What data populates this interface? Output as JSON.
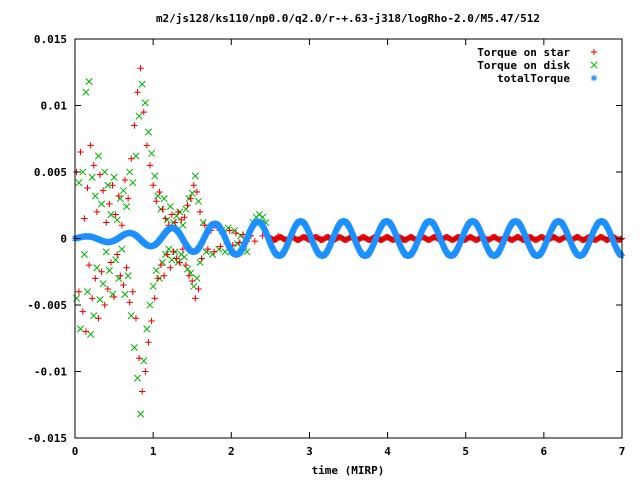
{
  "chart_data": {
    "type": "scatter",
    "title": "m2/js128/ks110/np0.0/q2.0/r-+.63-j318/logRho-2.0/M5.47/512",
    "xlabel": "time (MIRP)",
    "ylabel": "",
    "xlim": [
      0,
      7
    ],
    "ylim": [
      -0.015,
      0.015
    ],
    "x_ticks": [
      "0",
      "1",
      "2",
      "3",
      "4",
      "5",
      "6",
      "7"
    ],
    "y_ticks": [
      "-0.015",
      "-0.01",
      "-0.005",
      "0",
      "0.005",
      "0.01",
      "0.015"
    ],
    "grid": false,
    "legend_position": "top-right",
    "series": [
      {
        "name": "Torque on star",
        "marker": "plus",
        "color": "#e00000",
        "description_of_shape": "large scatter up to about 0.013 before t=1.7, decaying to near 0 after t=2.5",
        "points": [
          [
            0.02,
            0.005
          ],
          [
            0.05,
            -0.004
          ],
          [
            0.07,
            0.0065
          ],
          [
            0.1,
            -0.0055
          ],
          [
            0.12,
            0.0015
          ],
          [
            0.14,
            -0.007
          ],
          [
            0.16,
            0.0038
          ],
          [
            0.18,
            -0.002
          ],
          [
            0.2,
            0.007
          ],
          [
            0.22,
            -0.0045
          ],
          [
            0.24,
            0.0055
          ],
          [
            0.26,
            -0.003
          ],
          [
            0.28,
            0.002
          ],
          [
            0.3,
            -0.006
          ],
          [
            0.32,
            0.0048
          ],
          [
            0.34,
            -0.0025
          ],
          [
            0.36,
            0.0036
          ],
          [
            0.38,
            -0.005
          ],
          [
            0.4,
            0.0012
          ],
          [
            0.42,
            -0.0038
          ],
          [
            0.44,
            0.0026
          ],
          [
            0.46,
            -0.0018
          ],
          [
            0.48,
            0.004
          ],
          [
            0.5,
            -0.0044
          ],
          [
            0.52,
            0.0018
          ],
          [
            0.54,
            -0.0012
          ],
          [
            0.56,
            0.0032
          ],
          [
            0.58,
            -0.0028
          ],
          [
            0.6,
            0.001
          ],
          [
            0.62,
            -0.0035
          ],
          [
            0.64,
            0.0044
          ],
          [
            0.66,
            -0.0022
          ],
          [
            0.68,
            0.003
          ],
          [
            0.7,
            -0.0048
          ],
          [
            0.72,
            0.006
          ],
          [
            0.74,
            -0.004
          ],
          [
            0.76,
            0.0085
          ],
          [
            0.78,
            -0.006
          ],
          [
            0.8,
            0.011
          ],
          [
            0.82,
            -0.009
          ],
          [
            0.84,
            0.0128
          ],
          [
            0.86,
            -0.0115
          ],
          [
            0.88,
            0.0095
          ],
          [
            0.9,
            -0.01
          ],
          [
            0.92,
            0.007
          ],
          [
            0.94,
            -0.0078
          ],
          [
            0.96,
            0.0055
          ],
          [
            0.98,
            -0.0062
          ],
          [
            1.0,
            0.004
          ],
          [
            1.02,
            -0.0045
          ],
          [
            1.04,
            0.0028
          ],
          [
            1.06,
            -0.003
          ],
          [
            1.08,
            0.0035
          ],
          [
            1.1,
            -0.002
          ],
          [
            1.12,
            0.0022
          ],
          [
            1.14,
            -0.0028
          ],
          [
            1.16,
            0.0015
          ],
          [
            1.18,
            -0.0012
          ],
          [
            1.2,
            0.001
          ],
          [
            1.22,
            -0.0022
          ],
          [
            1.24,
            0.0018
          ],
          [
            1.26,
            -0.001
          ],
          [
            1.28,
            0.0012
          ],
          [
            1.3,
            -0.0015
          ],
          [
            1.32,
            0.002
          ],
          [
            1.34,
            -0.0018
          ],
          [
            1.36,
            0.0014
          ],
          [
            1.38,
            -0.0008
          ],
          [
            1.4,
            0.0016
          ],
          [
            1.42,
            -0.002
          ],
          [
            1.44,
            0.0025
          ],
          [
            1.46,
            -0.0028
          ],
          [
            1.48,
            0.003
          ],
          [
            1.5,
            -0.0032
          ],
          [
            1.52,
            0.004
          ],
          [
            1.54,
            -0.0045
          ],
          [
            1.56,
            0.0035
          ],
          [
            1.58,
            -0.0038
          ],
          [
            1.6,
            0.002
          ],
          [
            1.62,
            -0.0015
          ],
          [
            1.66,
            0.001
          ],
          [
            1.7,
            -0.0008
          ],
          [
            1.74,
            0.0006
          ],
          [
            1.78,
            -0.001
          ],
          [
            1.82,
            0.0008
          ],
          [
            1.86,
            -0.0006
          ],
          [
            1.9,
            0.0005
          ],
          [
            1.94,
            -0.0004
          ],
          [
            1.98,
            0.0006
          ],
          [
            2.02,
            -0.0005
          ],
          [
            2.06,
            0.0004
          ],
          [
            2.1,
            -0.0003
          ],
          [
            2.15,
            0.0003
          ],
          [
            2.2,
            -0.0002
          ],
          [
            2.25,
            0.0002
          ],
          [
            2.3,
            -0.0002
          ],
          [
            2.4,
            0.0002
          ],
          [
            2.5,
            -0.0002
          ],
          [
            2.6,
            0.0002
          ],
          [
            2.7,
            -0.0002
          ],
          [
            2.8,
            0.0001
          ]
        ],
        "steady_state": {
          "x_start": 2.5,
          "x_end": 7.0,
          "value_range": [
            -0.0001,
            0.0001
          ]
        }
      },
      {
        "name": "Torque on disk",
        "marker": "cross",
        "color": "#00b000",
        "description_of_shape": "large scatter up to about 0.0118 before t=1.7, merging into the total torque oscillation after t=2.3",
        "points": [
          [
            0.02,
            -0.0045
          ],
          [
            0.05,
            0.0042
          ],
          [
            0.07,
            -0.0068
          ],
          [
            0.1,
            0.005
          ],
          [
            0.12,
            -0.0012
          ],
          [
            0.14,
            0.011
          ],
          [
            0.16,
            -0.004
          ],
          [
            0.18,
            0.0118
          ],
          [
            0.2,
            -0.0072
          ],
          [
            0.22,
            0.0046
          ],
          [
            0.24,
            -0.0058
          ],
          [
            0.26,
            0.0032
          ],
          [
            0.28,
            -0.0022
          ],
          [
            0.3,
            0.0062
          ],
          [
            0.32,
            -0.0046
          ],
          [
            0.34,
            0.0026
          ],
          [
            0.36,
            -0.0034
          ],
          [
            0.38,
            0.005
          ],
          [
            0.4,
            -0.001
          ],
          [
            0.42,
            0.004
          ],
          [
            0.44,
            -0.0024
          ],
          [
            0.46,
            0.0018
          ],
          [
            0.48,
            -0.0042
          ],
          [
            0.5,
            0.0046
          ],
          [
            0.52,
            -0.0016
          ],
          [
            0.54,
            0.0014
          ],
          [
            0.56,
            -0.003
          ],
          [
            0.58,
            0.003
          ],
          [
            0.6,
            -0.0008
          ],
          [
            0.62,
            0.0036
          ],
          [
            0.64,
            -0.0042
          ],
          [
            0.66,
            0.0024
          ],
          [
            0.68,
            -0.0028
          ],
          [
            0.7,
            0.005
          ],
          [
            0.72,
            -0.0058
          ],
          [
            0.74,
            0.0042
          ],
          [
            0.76,
            -0.0082
          ],
          [
            0.78,
            0.0062
          ],
          [
            0.8,
            -0.0105
          ],
          [
            0.82,
            0.0092
          ],
          [
            0.84,
            -0.0132
          ],
          [
            0.86,
            0.0116
          ],
          [
            0.88,
            -0.0092
          ],
          [
            0.9,
            0.0102
          ],
          [
            0.92,
            -0.0068
          ],
          [
            0.94,
            0.008
          ],
          [
            0.96,
            -0.005
          ],
          [
            0.98,
            0.0064
          ],
          [
            1.0,
            -0.0036
          ],
          [
            1.02,
            0.0047
          ],
          [
            1.04,
            -0.0024
          ],
          [
            1.06,
            0.0032
          ],
          [
            1.08,
            -0.003
          ],
          [
            1.1,
            0.0022
          ],
          [
            1.12,
            -0.0018
          ],
          [
            1.14,
            0.003
          ],
          [
            1.16,
            -0.0012
          ],
          [
            1.18,
            0.0014
          ],
          [
            1.2,
            -0.0008
          ],
          [
            1.22,
            0.0024
          ],
          [
            1.24,
            -0.0016
          ],
          [
            1.26,
            0.0012
          ],
          [
            1.28,
            -0.001
          ],
          [
            1.3,
            0.0017
          ],
          [
            1.32,
            -0.0018
          ],
          [
            1.34,
            0.002
          ],
          [
            1.36,
            -0.0012
          ],
          [
            1.38,
            0.001
          ],
          [
            1.4,
            -0.0014
          ],
          [
            1.42,
            0.0022
          ],
          [
            1.44,
            -0.0023
          ],
          [
            1.46,
            0.003
          ],
          [
            1.48,
            -0.0026
          ],
          [
            1.5,
            0.0034
          ],
          [
            1.52,
            -0.0036
          ],
          [
            1.54,
            0.0047
          ],
          [
            1.56,
            -0.003
          ],
          [
            1.58,
            0.0028
          ],
          [
            1.6,
            -0.0018
          ],
          [
            1.64,
            0.0012
          ],
          [
            1.68,
            -0.001
          ],
          [
            1.72,
            0.0008
          ],
          [
            1.76,
            -0.0012
          ],
          [
            1.8,
            0.001
          ],
          [
            1.84,
            -0.0008
          ],
          [
            1.88,
            0.0006
          ],
          [
            1.92,
            -0.001
          ],
          [
            1.96,
            0.0008
          ],
          [
            2.0,
            -0.001
          ],
          [
            2.04,
            0.0006
          ],
          [
            2.08,
            -0.0004
          ],
          [
            2.12,
            0.0002
          ],
          [
            2.16,
            -0.0006
          ],
          [
            2.2,
            -0.001
          ],
          [
            2.24,
            0.0004
          ],
          [
            2.28,
            0.0012
          ],
          [
            2.32,
            0.0016
          ],
          [
            2.36,
            0.0018
          ],
          [
            2.4,
            0.0016
          ],
          [
            2.44,
            0.0012
          ]
        ]
      },
      {
        "name": "totalTorque",
        "marker": "star",
        "color": "#1e90ff",
        "description_of_shape": "oscillation about 0 with amplitude growing from ~0.0002 at t=0 to ~0.0013 by t=2.5, period about 0.55, sustained to t=7",
        "oscillation": {
          "period": 0.55,
          "phase_zero_crossing": 0.0,
          "amplitude_points": [
            [
              0.0,
              0.0001
            ],
            [
              0.5,
              0.0003
            ],
            [
              1.0,
              0.0006
            ],
            [
              1.5,
              0.001
            ],
            [
              2.0,
              0.0012
            ],
            [
              2.5,
              0.0013
            ],
            [
              7.0,
              0.0013
            ]
          ]
        }
      }
    ]
  }
}
